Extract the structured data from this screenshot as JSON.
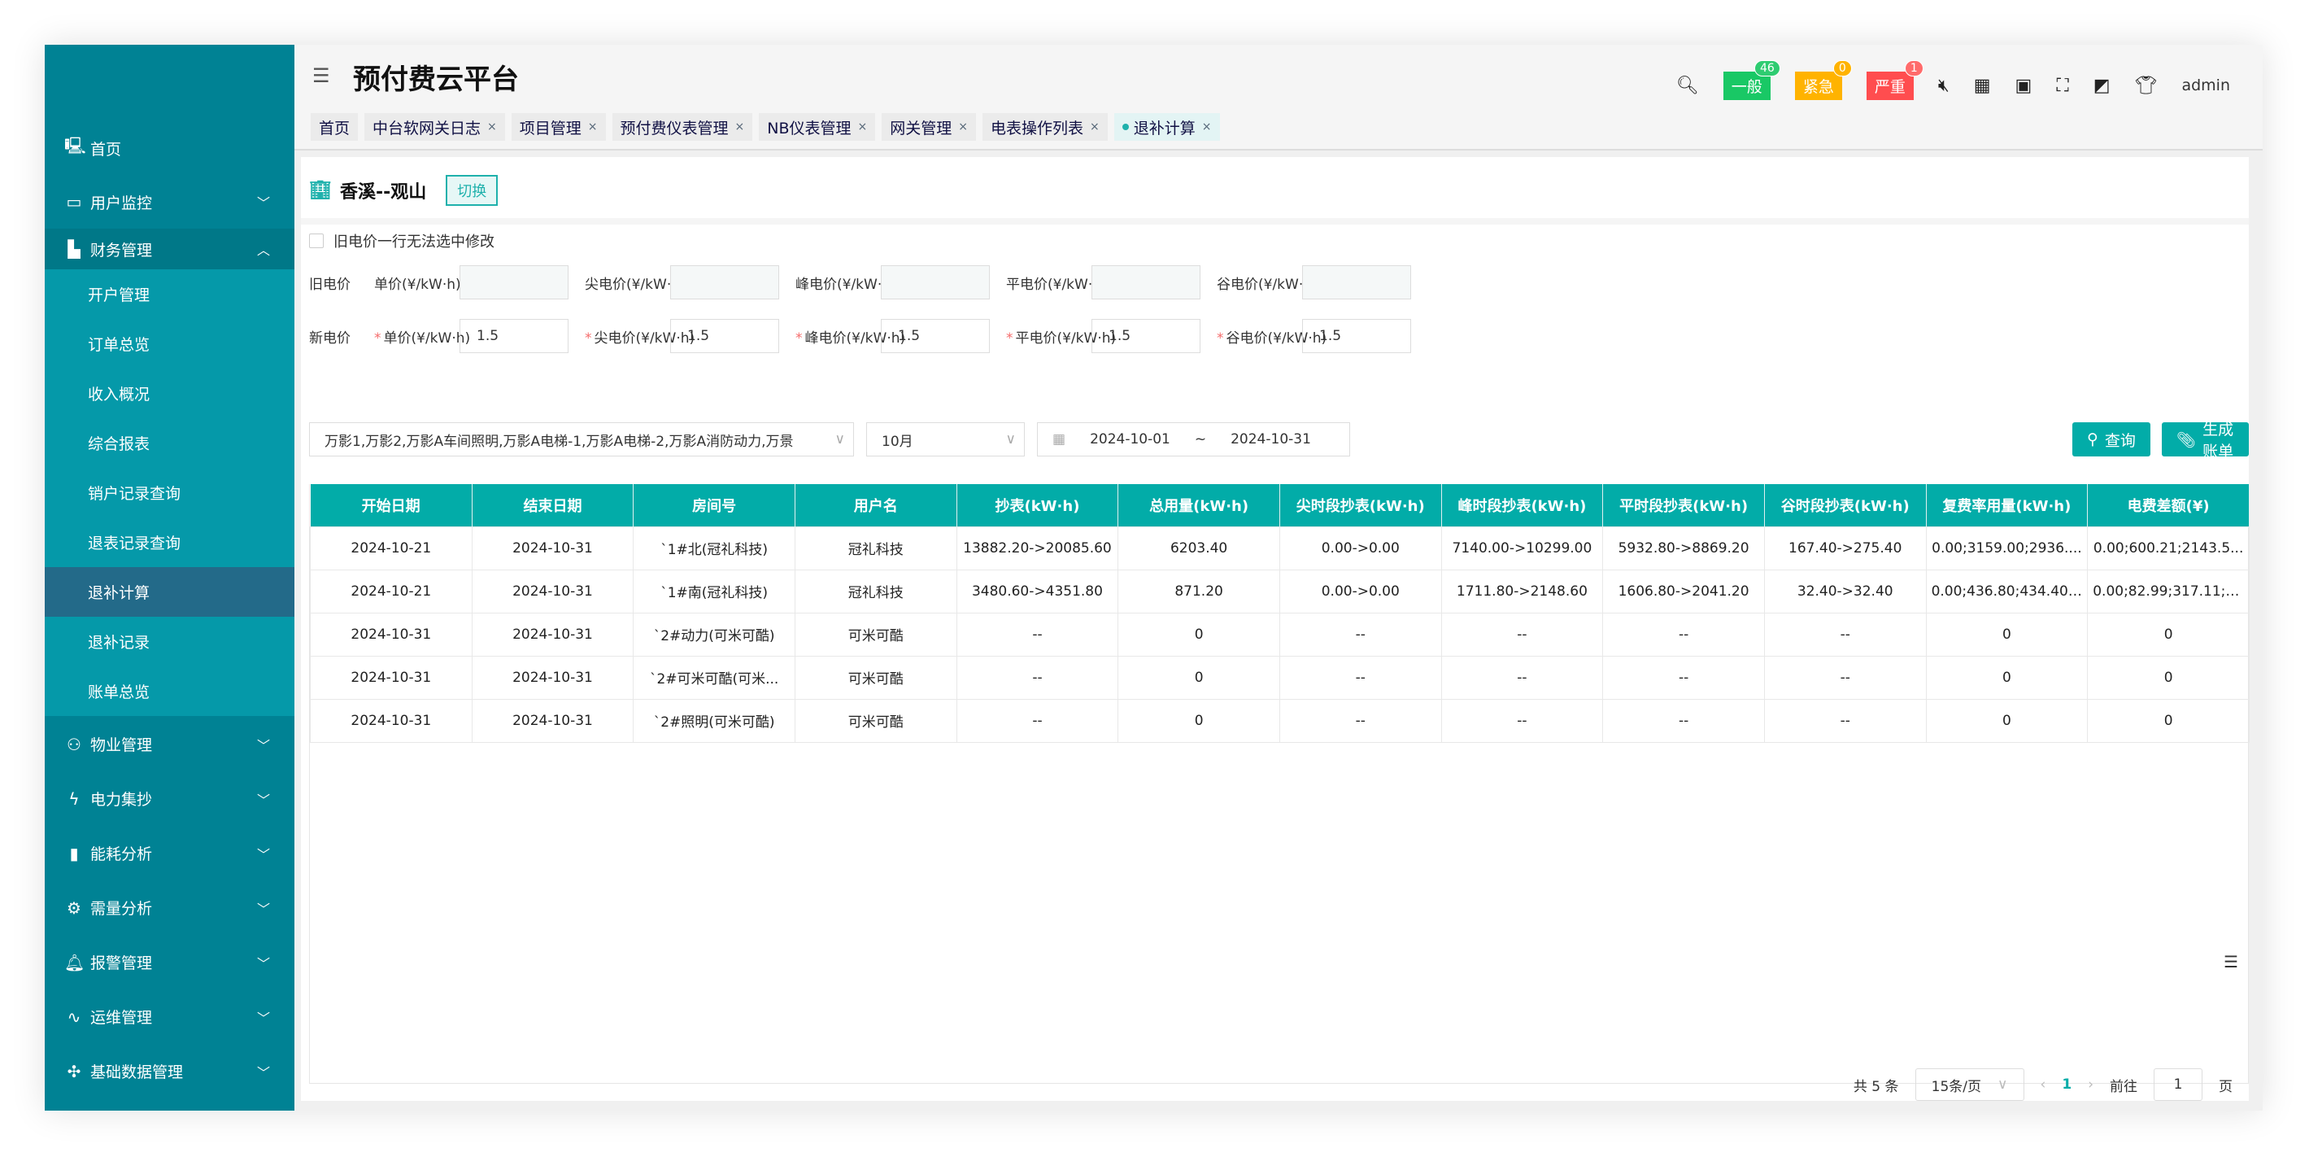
{
  "app": {
    "title": "预付费云平台",
    "user": "admin"
  },
  "colors": {
    "sidebar": "#008294",
    "submenu": "#0599a9",
    "active": "#236a89",
    "accent": "#02aca8",
    "general": "#19c865",
    "urgent": "#ffb300",
    "severe": "#ff4d4f"
  },
  "sidebar": {
    "top": [
      {
        "label": "首页",
        "icon": "monitor-icon"
      },
      {
        "label": "用户监控",
        "icon": "screen-icon"
      },
      {
        "label": "财务管理",
        "icon": "finance-icon"
      }
    ],
    "finance_sub": [
      "开户管理",
      "订单总览",
      "收入概况",
      "综合报表",
      "销户记录查询",
      "退表记录查询",
      "退补计算",
      "退补记录",
      "账单总览"
    ],
    "bottom": [
      {
        "label": "物业管理",
        "icon": "user-home-icon"
      },
      {
        "label": "电力集抄",
        "icon": "lightning-icon"
      },
      {
        "label": "能耗分析",
        "icon": "bar-chart-icon"
      },
      {
        "label": "需量分析",
        "icon": "gear-bolt-icon"
      },
      {
        "label": "报警管理",
        "icon": "bell-icon"
      },
      {
        "label": "运维管理",
        "icon": "pulse-icon"
      },
      {
        "label": "基础数据管理",
        "icon": "network-icon"
      }
    ]
  },
  "tabs": [
    "首页",
    "中台软网关日志",
    "项目管理",
    "预付费仪表管理",
    "NB仪表管理",
    "网关管理",
    "电表操作列表",
    "退补计算"
  ],
  "alerts": [
    {
      "label": "一般",
      "count": "46"
    },
    {
      "label": "紧急",
      "count": "0"
    },
    {
      "label": "严重",
      "count": "1"
    }
  ],
  "project": {
    "name": "香溪--观山",
    "switch_label": "切换"
  },
  "checkbox_label": "旧电价一行无法选中修改",
  "old_price": {
    "label": "旧电价",
    "fields": [
      {
        "label": "单价(¥/kW·h)",
        "value": ""
      },
      {
        "label": "尖电价(¥/kW·h)",
        "value": ""
      },
      {
        "label": "峰电价(¥/kW·h)",
        "value": ""
      },
      {
        "label": "平电价(¥/kW·h)",
        "value": ""
      },
      {
        "label": "谷电价(¥/kW·h)",
        "value": ""
      }
    ]
  },
  "new_price": {
    "label": "新电价",
    "fields": [
      {
        "label": "单价(¥/kW·h)",
        "value": "1.5"
      },
      {
        "label": "尖电价(¥/kW·h)",
        "value": "1.5"
      },
      {
        "label": "峰电价(¥/kW·h)",
        "value": "1.5"
      },
      {
        "label": "平电价(¥/kW·h)",
        "value": "1.5"
      },
      {
        "label": "谷电价(¥/kW·h)",
        "value": "1.5"
      }
    ]
  },
  "filters": {
    "meters": "万影1,万影2,万影A车间照明,万影A电梯-1,万影A电梯-2,万影A消防动力,万景",
    "month": "10月",
    "start": "2024-10-01",
    "sep": "~",
    "end": "2024-10-31"
  },
  "buttons": {
    "query": "查询",
    "generate": "生成账单"
  },
  "table": {
    "columns": [
      "开始日期",
      "结束日期",
      "房间号",
      "用户名",
      "抄表(kW·h)",
      "总用量(kW·h)",
      "尖时段抄表(kW·h)",
      "峰时段抄表(kW·h)",
      "平时段抄表(kW·h)",
      "谷时段抄表(kW·h)",
      "复费率用量(kW·h)",
      "电费差额(¥)"
    ],
    "rows": [
      [
        "2024-10-21",
        "2024-10-31",
        "`1#北(冠礼科技)",
        "冠礼科技",
        "13882.20->20085.60",
        "6203.40",
        "0.00->0.00",
        "7140.00->10299.00",
        "5932.80->8869.20",
        "167.40->275.40",
        "0.00;3159.00;2936....",
        "0.00;600.21;2143.5..."
      ],
      [
        "2024-10-21",
        "2024-10-31",
        "`1#南(冠礼科技)",
        "冠礼科技",
        "3480.60->4351.80",
        "871.20",
        "0.00->0.00",
        "1711.80->2148.60",
        "1606.80->2041.20",
        "32.40->32.40",
        "0.00;436.80;434.40;...",
        "0.00;82.99;317.11;0..."
      ],
      [
        "2024-10-31",
        "2024-10-31",
        "`2#动力(可米可酷)",
        "可米可酷",
        "--",
        "0",
        "--",
        "--",
        "--",
        "--",
        "0",
        "0"
      ],
      [
        "2024-10-31",
        "2024-10-31",
        "`2#可米可酷(可米...",
        "可米可酷",
        "--",
        "0",
        "--",
        "--",
        "--",
        "--",
        "0",
        "0"
      ],
      [
        "2024-10-31",
        "2024-10-31",
        "`2#照明(可米可酷)",
        "可米可酷",
        "--",
        "0",
        "--",
        "--",
        "--",
        "--",
        "0",
        "0"
      ]
    ]
  },
  "pagination": {
    "total": "共 5 条",
    "page_size": "15条/页",
    "current": "1",
    "goto_label": "前往",
    "goto_value": "1",
    "page_suffix": "页"
  }
}
